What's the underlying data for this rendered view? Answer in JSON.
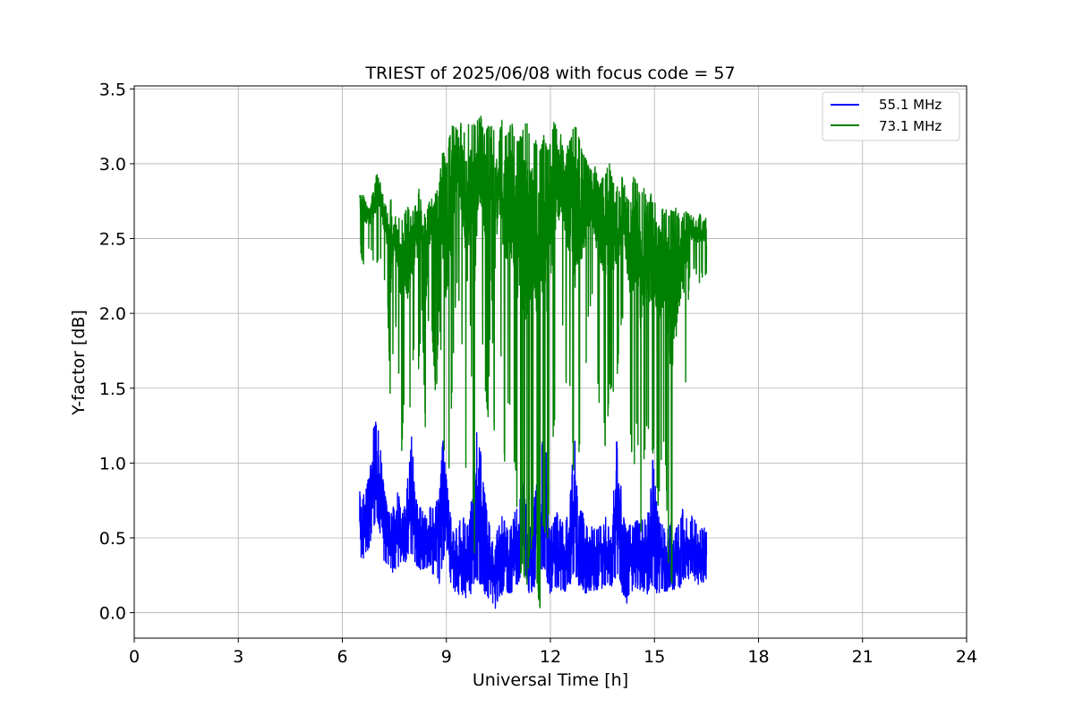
{
  "chart_data": {
    "type": "line",
    "title": "TRIEST of 2025/06/08 with focus code = 57",
    "xlabel": "Universal Time [h]",
    "ylabel": "Y-factor [dB]",
    "xlim": [
      0,
      24
    ],
    "ylim": [
      -0.17,
      3.52
    ],
    "xticks": [
      0,
      3,
      6,
      9,
      12,
      15,
      18,
      21,
      24
    ],
    "yticks": [
      0.0,
      0.5,
      1.0,
      1.5,
      2.0,
      2.5,
      3.0,
      3.5
    ],
    "xtick_labels": [
      "0",
      "3",
      "6",
      "9",
      "12",
      "15",
      "18",
      "21",
      "24"
    ],
    "ytick_labels": [
      "0.0",
      "0.5",
      "1.0",
      "1.5",
      "2.0",
      "2.5",
      "3.0",
      "3.5"
    ],
    "grid": true,
    "legend_position": "top-right",
    "series": [
      {
        "name": "55.1 MHz",
        "color": "#0000ff",
        "x": [
          6.5,
          6.6,
          6.7,
          6.8,
          6.9,
          7.0,
          7.1,
          7.2,
          7.3,
          7.4,
          7.5,
          7.6,
          7.7,
          7.8,
          7.9,
          8.0,
          8.1,
          8.2,
          8.3,
          8.4,
          8.5,
          8.6,
          8.7,
          8.8,
          8.9,
          9.0,
          9.1,
          9.2,
          9.3,
          9.4,
          9.5,
          9.6,
          9.7,
          9.8,
          9.9,
          10.0,
          10.1,
          10.2,
          10.3,
          10.4,
          10.5,
          10.6,
          10.7,
          10.8,
          10.9,
          11.0,
          11.1,
          11.2,
          11.3,
          11.4,
          11.5,
          11.6,
          11.7,
          11.8,
          11.9,
          12.0,
          12.1,
          12.2,
          12.3,
          12.4,
          12.5,
          12.6,
          12.7,
          12.8,
          12.9,
          13.0,
          13.1,
          13.2,
          13.3,
          13.4,
          13.5,
          13.6,
          13.7,
          13.8,
          13.9,
          14.0,
          14.1,
          14.2,
          14.3,
          14.4,
          14.5,
          14.6,
          14.7,
          14.8,
          14.9,
          15.0,
          15.1,
          15.2,
          15.3,
          15.4,
          15.5,
          15.6,
          15.7,
          15.8,
          15.9,
          16.0,
          16.1,
          16.2,
          16.3,
          16.4,
          16.5
        ],
        "y_high": [
          0.82,
          0.8,
          0.85,
          0.95,
          1.25,
          1.3,
          1.1,
          0.85,
          0.7,
          0.68,
          0.72,
          0.85,
          0.65,
          0.72,
          0.95,
          1.2,
          0.8,
          0.75,
          0.68,
          0.65,
          0.72,
          0.7,
          0.75,
          0.78,
          1.2,
          0.9,
          0.7,
          0.55,
          0.6,
          0.62,
          0.65,
          0.58,
          0.7,
          1.1,
          1.25,
          1.05,
          0.8,
          0.68,
          0.5,
          0.45,
          0.6,
          0.68,
          0.65,
          0.55,
          0.6,
          0.7,
          0.72,
          0.9,
          0.75,
          0.55,
          0.7,
          0.88,
          1.0,
          1.25,
          1.05,
          0.55,
          0.65,
          0.68,
          0.62,
          0.6,
          0.65,
          0.9,
          1.2,
          0.65,
          0.7,
          0.6,
          0.62,
          0.58,
          0.55,
          0.6,
          0.55,
          0.65,
          0.6,
          0.75,
          1.18,
          1.0,
          0.65,
          0.55,
          0.6,
          0.6,
          0.65,
          0.6,
          0.65,
          0.62,
          1.15,
          0.95,
          0.65,
          0.62,
          0.58,
          0.6,
          0.62,
          0.55,
          0.6,
          0.7,
          0.65,
          0.6,
          0.68,
          0.6,
          0.55,
          0.58,
          0.55
        ],
        "y_low": [
          0.38,
          0.35,
          0.4,
          0.45,
          0.55,
          0.6,
          0.5,
          0.35,
          0.3,
          0.26,
          0.28,
          0.3,
          0.3,
          0.32,
          0.38,
          0.4,
          0.32,
          0.28,
          0.25,
          0.28,
          0.3,
          0.26,
          0.22,
          0.18,
          0.35,
          0.3,
          0.22,
          0.12,
          0.15,
          0.1,
          0.12,
          0.08,
          0.12,
          0.2,
          0.22,
          0.18,
          0.12,
          0.1,
          0.08,
          0.0,
          0.1,
          0.12,
          0.15,
          0.1,
          0.12,
          0.15,
          0.2,
          0.3,
          0.2,
          0.12,
          0.15,
          0.2,
          0.25,
          0.3,
          0.2,
          0.1,
          0.15,
          0.16,
          0.15,
          0.14,
          0.15,
          0.2,
          0.25,
          0.18,
          0.15,
          0.12,
          0.15,
          0.13,
          0.15,
          0.14,
          0.15,
          0.18,
          0.16,
          0.18,
          0.25,
          0.2,
          0.1,
          0.05,
          0.12,
          0.15,
          0.16,
          0.15,
          0.14,
          0.12,
          0.2,
          0.15,
          0.1,
          0.15,
          0.12,
          0.14,
          0.15,
          0.15,
          0.13,
          0.2,
          0.22,
          0.2,
          0.25,
          0.2,
          0.18,
          0.2,
          0.22
        ]
      },
      {
        "name": "73.1 MHz",
        "color": "#008000",
        "x": [
          6.5,
          6.6,
          6.7,
          6.8,
          6.9,
          7.0,
          7.1,
          7.2,
          7.3,
          7.4,
          7.5,
          7.6,
          7.7,
          7.8,
          7.9,
          8.0,
          8.1,
          8.2,
          8.3,
          8.4,
          8.5,
          8.6,
          8.7,
          8.8,
          8.9,
          9.0,
          9.1,
          9.2,
          9.3,
          9.4,
          9.5,
          9.6,
          9.7,
          9.8,
          9.9,
          10.0,
          10.1,
          10.2,
          10.3,
          10.4,
          10.5,
          10.6,
          10.7,
          10.8,
          10.9,
          11.0,
          11.1,
          11.2,
          11.3,
          11.4,
          11.5,
          11.6,
          11.7,
          11.8,
          11.9,
          12.0,
          12.1,
          12.2,
          12.3,
          12.4,
          12.5,
          12.6,
          12.7,
          12.8,
          12.9,
          13.0,
          13.1,
          13.2,
          13.3,
          13.4,
          13.5,
          13.6,
          13.7,
          13.8,
          13.9,
          14.0,
          14.1,
          14.2,
          14.3,
          14.4,
          14.5,
          14.6,
          14.7,
          14.8,
          14.9,
          15.0,
          15.1,
          15.2,
          15.3,
          15.4,
          15.5,
          15.6,
          15.7,
          15.8,
          15.9,
          16.0,
          16.1,
          16.2,
          16.3,
          16.4,
          16.5
        ],
        "y_high": [
          2.82,
          2.8,
          2.75,
          2.72,
          2.85,
          2.98,
          2.9,
          2.75,
          2.7,
          2.8,
          2.72,
          2.68,
          2.65,
          2.7,
          2.72,
          2.68,
          2.72,
          2.85,
          2.7,
          2.65,
          2.75,
          2.88,
          2.82,
          2.9,
          3.1,
          3.0,
          3.22,
          3.28,
          3.25,
          3.3,
          3.2,
          3.3,
          3.25,
          3.28,
          3.3,
          3.32,
          3.2,
          3.25,
          3.28,
          3.2,
          3.15,
          3.3,
          3.2,
          3.25,
          3.3,
          3.15,
          3.2,
          3.22,
          3.3,
          3.2,
          3.18,
          3.15,
          3.1,
          3.22,
          3.1,
          3.15,
          3.28,
          3.25,
          3.2,
          3.1,
          3.12,
          3.2,
          3.3,
          3.22,
          3.1,
          3.05,
          3.0,
          2.95,
          3.0,
          2.85,
          2.92,
          2.95,
          3.02,
          2.9,
          2.85,
          2.85,
          2.95,
          2.8,
          2.75,
          2.92,
          2.88,
          2.8,
          2.85,
          2.75,
          2.8,
          2.75,
          2.78,
          2.72,
          2.7,
          2.68,
          2.7,
          2.72,
          2.68,
          2.65,
          2.72,
          2.66,
          2.65,
          2.62,
          2.68,
          2.65,
          2.66
        ],
        "y_low": [
          2.45,
          2.3,
          2.4,
          2.4,
          2.35,
          2.3,
          2.35,
          2.2,
          2.1,
          1.25,
          2.0,
          1.8,
          1.0,
          1.5,
          1.2,
          1.5,
          1.9,
          1.6,
          2.0,
          1.15,
          2.1,
          1.8,
          1.4,
          2.0,
          1.3,
          0.7,
          1.0,
          1.7,
          2.2,
          2.0,
          1.5,
          0.6,
          2.0,
          0.25,
          1.8,
          2.0,
          1.5,
          1.3,
          2.2,
          0.95,
          2.0,
          1.6,
          0.8,
          1.5,
          1.0,
          0.95,
          0.2,
          0.3,
          0.1,
          0.35,
          0.5,
          0.2,
          0.0,
          0.6,
          0.4,
          0.9,
          1.2,
          1.6,
          2.0,
          1.8,
          1.3,
          1.6,
          0.5,
          1.0,
          1.3,
          1.5,
          2.0,
          2.1,
          1.8,
          1.4,
          1.5,
          1.0,
          1.5,
          1.45,
          1.5,
          1.8,
          2.0,
          1.6,
          1.2,
          0.9,
          1.3,
          0.5,
          1.0,
          1.3,
          1.0,
          1.1,
          0.7,
          1.0,
          1.2,
          0.3,
          0.15,
          0.3,
          1.0,
          1.2,
          1.5,
          2.2,
          2.3,
          2.25,
          2.2,
          2.25,
          2.25
        ]
      }
    ]
  }
}
